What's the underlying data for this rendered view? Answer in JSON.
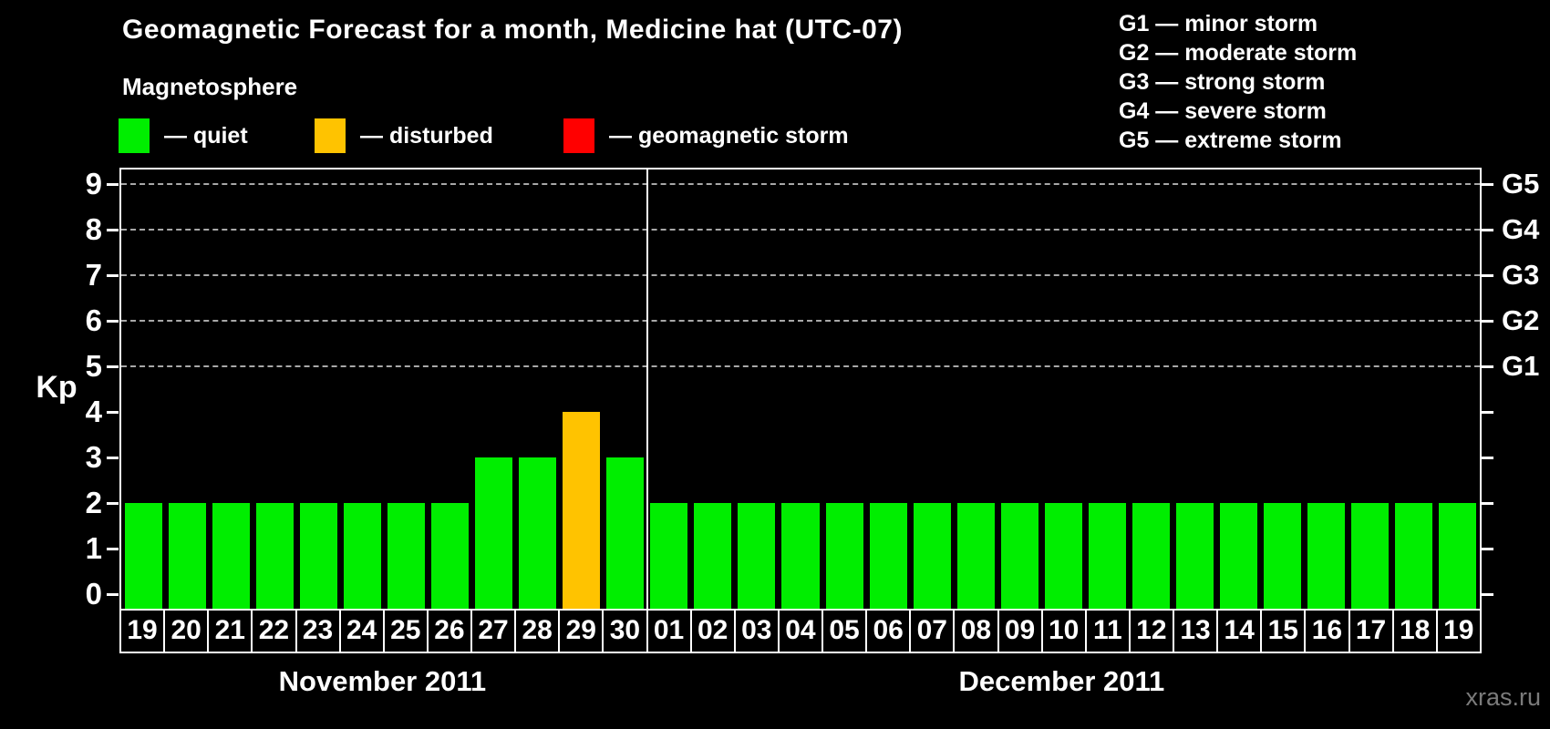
{
  "title": "Geomagnetic Forecast for a month, Medicine hat (UTC-07)",
  "subtitle": "Magnetosphere",
  "legend": {
    "items": [
      {
        "id": "quiet",
        "label": "— quiet",
        "color": "#00ee00"
      },
      {
        "id": "disturbed",
        "label": "— disturbed",
        "color": "#ffc300"
      },
      {
        "id": "storm",
        "label": "— geomagnetic storm",
        "color": "#ff0000"
      }
    ]
  },
  "storm_scale_legend": [
    "G1 — minor storm",
    "G2 — moderate storm",
    "G3 — strong storm",
    "G4 — severe storm",
    "G5 — extreme storm"
  ],
  "watermark": "xras.ru",
  "chart_data": {
    "type": "bar",
    "title": "Geomagnetic Forecast for a month, Medicine hat (UTC-07)",
    "ylabel": "Kp",
    "ylim": [
      0,
      9
    ],
    "yticks": [
      0,
      1,
      2,
      3,
      4,
      5,
      6,
      7,
      8,
      9
    ],
    "gridlines_at": [
      5,
      6,
      7,
      8,
      9
    ],
    "grid": "dashed",
    "right_axis_labels": [
      {
        "value": 5,
        "label": "G1"
      },
      {
        "value": 6,
        "label": "G2"
      },
      {
        "value": 7,
        "label": "G3"
      },
      {
        "value": 8,
        "label": "G4"
      },
      {
        "value": 9,
        "label": "G5"
      }
    ],
    "status_colors": {
      "quiet": "#00ee00",
      "disturbed": "#ffc300",
      "storm": "#ff0000"
    },
    "months": [
      {
        "label": "November 2011",
        "days": [
          "19",
          "20",
          "21",
          "22",
          "23",
          "24",
          "25",
          "26",
          "27",
          "28",
          "29",
          "30"
        ],
        "values": [
          2,
          2,
          2,
          2,
          2,
          2,
          2,
          2,
          3,
          3,
          4,
          3
        ],
        "status": [
          "quiet",
          "quiet",
          "quiet",
          "quiet",
          "quiet",
          "quiet",
          "quiet",
          "quiet",
          "quiet",
          "quiet",
          "disturbed",
          "quiet"
        ]
      },
      {
        "label": "December 2011",
        "days": [
          "01",
          "02",
          "03",
          "04",
          "05",
          "06",
          "07",
          "08",
          "09",
          "10",
          "11",
          "12",
          "13",
          "14",
          "15",
          "16",
          "17",
          "18",
          "19"
        ],
        "values": [
          2,
          2,
          2,
          2,
          2,
          2,
          2,
          2,
          2,
          2,
          2,
          2,
          2,
          2,
          2,
          2,
          2,
          2,
          2
        ],
        "status": [
          "quiet",
          "quiet",
          "quiet",
          "quiet",
          "quiet",
          "quiet",
          "quiet",
          "quiet",
          "quiet",
          "quiet",
          "quiet",
          "quiet",
          "quiet",
          "quiet",
          "quiet",
          "quiet",
          "quiet",
          "quiet",
          "quiet"
        ]
      }
    ]
  }
}
